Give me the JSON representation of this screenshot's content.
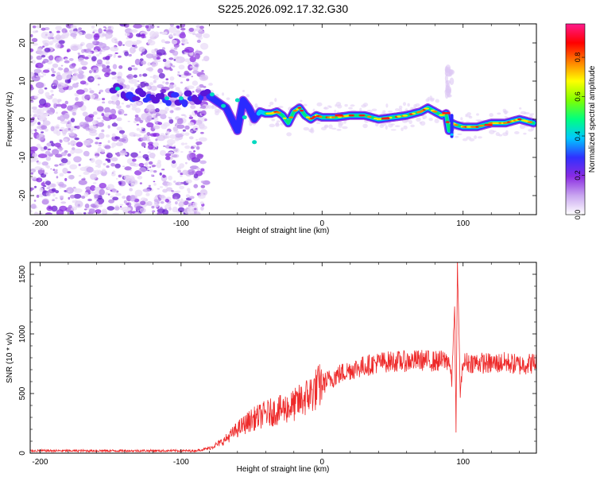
{
  "title": "S225.2026.092.17.32.G30",
  "chart_data": [
    {
      "type": "heatmap",
      "name": "spectrogram",
      "xlabel": "Height of straight line (km)",
      "ylabel": "Frequency (Hz)",
      "xlim": [
        -207,
        152
      ],
      "ylim": [
        -25,
        25
      ],
      "xticks": [
        -200,
        -100,
        0,
        100
      ],
      "yticks": [
        -20,
        -10,
        0,
        10,
        20
      ],
      "colorbar": {
        "label": "Normalized spectral amplitude",
        "range": [
          0,
          0.97
        ],
        "ticks": [
          "0.0",
          "0.2",
          "0.4",
          "0.6",
          "0.8"
        ],
        "colors": [
          "#ffffff",
          "#c9a6f0",
          "#8a2be2",
          "#3030ff",
          "#00c8ff",
          "#00ff80",
          "#80ff00",
          "#ffff00",
          "#ff8000",
          "#ff0000",
          "#ff1a8c"
        ]
      },
      "noise_region_km": [
        -207,
        -82
      ],
      "ridge": {
        "x": [
          -148,
          -140,
          -130,
          -120,
          -110,
          -100,
          -92,
          -85,
          -80,
          -76,
          -72,
          -68,
          -64,
          -60,
          -56,
          -52,
          -48,
          -44,
          -40,
          -36,
          -32,
          -28,
          -24,
          -20,
          -16,
          -12,
          -8,
          -4,
          0,
          10,
          20,
          30,
          40,
          50,
          60,
          70,
          75,
          80,
          85,
          88,
          90,
          92,
          95,
          100,
          110,
          120,
          130,
          140,
          150
        ],
        "y": [
          8,
          7,
          6.5,
          6,
          5.5,
          5,
          6,
          6,
          6,
          5,
          4,
          3,
          0,
          -3,
          5,
          3,
          0,
          2,
          1.5,
          1.5,
          2,
          1,
          -1,
          2,
          3,
          1,
          0,
          1,
          0.5,
          0.5,
          1,
          1,
          0,
          0.5,
          1,
          2,
          3,
          2,
          1,
          1.5,
          -3,
          -1,
          -1.5,
          -2,
          -2,
          -1,
          -1,
          0,
          -1
        ]
      }
    },
    {
      "type": "line",
      "name": "snr",
      "xlabel": "Height of straight line (km)",
      "ylabel": "SNR (10 * v/v)",
      "xlim": [
        -207,
        152
      ],
      "ylim": [
        0,
        1600
      ],
      "xticks": [
        -200,
        -100,
        0,
        100
      ],
      "yticks": [
        0,
        500,
        1000,
        1500
      ],
      "color": "#ee2a2a",
      "envelope": {
        "x": [
          -207,
          -90,
          -80,
          -70,
          -60,
          -50,
          -40,
          -30,
          -20,
          -10,
          0,
          10,
          20,
          30,
          40,
          50,
          60,
          70,
          80,
          90,
          92,
          94,
          95,
          96,
          98,
          100,
          110,
          120,
          130,
          140,
          152
        ],
        "y": [
          20,
          20,
          40,
          100,
          200,
          280,
          330,
          360,
          400,
          480,
          580,
          650,
          700,
          730,
          760,
          770,
          770,
          780,
          770,
          780,
          600,
          1250,
          180,
          1600,
          500,
          760,
          760,
          750,
          760,
          740,
          760
        ]
      }
    }
  ]
}
